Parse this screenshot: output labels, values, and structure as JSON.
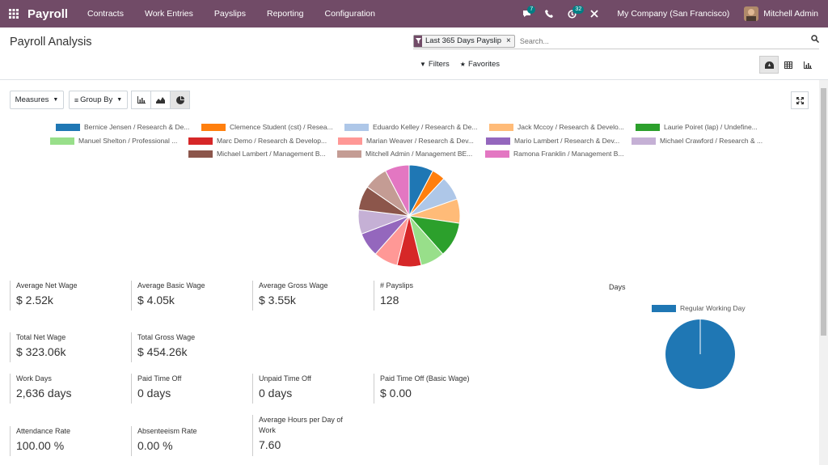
{
  "nav": {
    "app_name": "Payroll",
    "menu": [
      "Contracts",
      "Work Entries",
      "Payslips",
      "Reporting",
      "Configuration"
    ],
    "messages_badge": "7",
    "activities_badge": "32",
    "company": "My Company (San Francisco)",
    "user": "Mitchell Admin"
  },
  "page": {
    "title": "Payroll Analysis",
    "facet_label": "Last 365 Days Payslip",
    "search_placeholder": "Search...",
    "filters_label": "Filters",
    "favorites_label": "Favorites",
    "measures_label": "Measures",
    "group_by_label": "Group By"
  },
  "chart_data": [
    {
      "type": "pie",
      "labels": [
        "Bernice Jensen / Research & De...",
        "Clemence Student (cst) / Resea...",
        "Eduardo Kelley / Research & De...",
        "Jack Mccoy / Research & Develo...",
        "Laurie Poiret (lap) / Undefine...",
        "Manuel Shelton / Professional ...",
        "Marc Demo / Research & Develop...",
        "Marian Weaver / Research & Dev...",
        "Mario Lambert / Research & Dev...",
        "Michael Crawford / Research & ...",
        "Michael Lambert / Management B...",
        "Mitchell Admin / Management BE...",
        "Ramona Franklin / Management B..."
      ],
      "values": [
        1,
        0.55,
        1,
        1,
        1.45,
        1,
        1,
        1,
        1,
        1,
        1,
        1,
        1
      ],
      "colors": [
        "#1f77b4",
        "#ff7f0e",
        "#aec7e8",
        "#ffbb78",
        "#2ca02c",
        "#98df8a",
        "#d62728",
        "#ff9896",
        "#9467bd",
        "#c5b0d5",
        "#8c564b",
        "#c49c94",
        "#e377c2"
      ]
    },
    {
      "type": "pie",
      "title": "Days",
      "labels": [
        "Regular Working Day"
      ],
      "values": [
        100
      ],
      "colors": [
        "#1f77b4"
      ]
    }
  ],
  "kpis": [
    {
      "label": "Average Net Wage",
      "value": "$ 2.52k"
    },
    {
      "label": "Average Basic Wage",
      "value": "$ 4.05k"
    },
    {
      "label": "Average Gross Wage",
      "value": "$ 3.55k"
    },
    {
      "label": "# Payslips",
      "value": "128"
    },
    {
      "label": "Total Net Wage",
      "value": "$ 323.06k"
    },
    {
      "label": "Total Gross Wage",
      "value": "$ 454.26k"
    },
    {
      "label": "Work Days",
      "value": "2,636 days"
    },
    {
      "label": "Paid Time Off",
      "value": "0 days"
    },
    {
      "label": "Unpaid Time Off",
      "value": "0 days"
    },
    {
      "label": "Paid Time Off (Basic Wage)",
      "value": "$ 0.00"
    },
    {
      "label": "Attendance Rate",
      "value": "100.00 %"
    },
    {
      "label": "Absenteeism Rate",
      "value": "0.00 %"
    },
    {
      "label": "Average Hours per Day of Work",
      "value": "7.60"
    }
  ]
}
